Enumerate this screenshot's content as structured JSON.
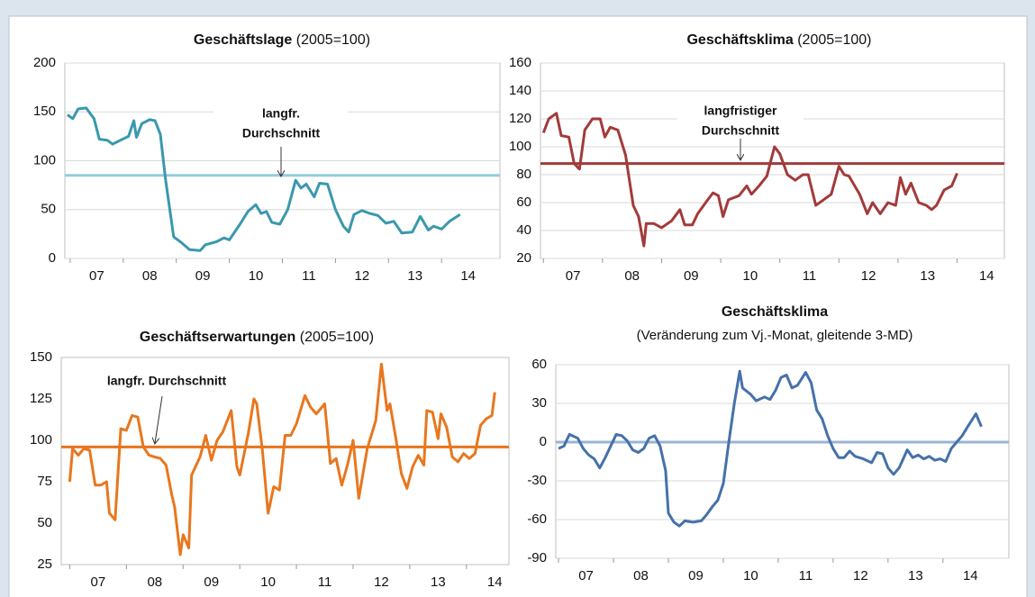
{
  "chart_data": [
    {
      "type": "line",
      "title": "Geschäftslage",
      "subtitle": "(2005=100)",
      "x": [
        2006.95,
        2007.05,
        2007.15,
        2007.3,
        2007.45,
        2007.55,
        2007.7,
        2007.8,
        2007.95,
        2008.1,
        2008.2,
        2008.25,
        2008.35,
        2008.5,
        2008.6,
        2008.7,
        2008.8,
        2008.95,
        2009.1,
        2009.25,
        2009.45,
        2009.55,
        2009.75,
        2009.9,
        2010.0,
        2010.2,
        2010.35,
        2010.5,
        2010.6,
        2010.7,
        2010.8,
        2010.95,
        2011.1,
        2011.25,
        2011.35,
        2011.45,
        2011.6,
        2011.7,
        2011.85,
        2012.0,
        2012.15,
        2012.25,
        2012.35,
        2012.5,
        2012.65,
        2012.8,
        2012.95,
        2013.1,
        2013.25,
        2013.45,
        2013.6,
        2013.75,
        2013.85,
        2014.0,
        2014.15,
        2014.35
      ],
      "series": [
        {
          "color": "#3a98ad",
          "values": [
            147,
            143,
            153,
            154,
            143,
            122,
            121,
            117,
            121,
            125,
            141,
            124,
            138,
            142,
            141,
            127,
            80,
            22,
            16,
            9,
            8,
            14,
            17,
            21,
            19,
            35,
            48,
            55,
            46,
            48,
            37,
            35,
            50,
            80,
            72,
            76,
            63,
            77,
            76,
            50,
            33,
            27,
            45,
            49,
            46,
            44,
            36,
            38,
            26,
            27,
            43,
            29,
            33,
            30,
            38,
            45
          ]
        }
      ],
      "reference_line": {
        "value": 85,
        "color": "#93cddd"
      },
      "annotation": {
        "lines": [
          "langfr.",
          "Durchschnitt"
        ],
        "color": "#3a98ad"
      },
      "xlim": [
        2006.9,
        2015.1
      ],
      "xticks": [
        {
          "value": 2007.5,
          "label": "07"
        },
        {
          "value": 2008.5,
          "label": "08"
        },
        {
          "value": 2009.5,
          "label": "09"
        },
        {
          "value": 2010.5,
          "label": "10"
        },
        {
          "value": 2011.5,
          "label": "11"
        },
        {
          "value": 2012.5,
          "label": "12"
        },
        {
          "value": 2013.5,
          "label": "13"
        },
        {
          "value": 2014.5,
          "label": "14"
        }
      ],
      "ylim": [
        0,
        200
      ],
      "yticks": [
        0,
        50,
        100,
        150,
        200
      ],
      "grid": true
    },
    {
      "type": "line",
      "title": "Geschäftsklima",
      "subtitle": "(2005=100)",
      "x": [
        2007.0,
        2007.09,
        2007.22,
        2007.3,
        2007.43,
        2007.52,
        2007.61,
        2007.7,
        2007.83,
        2007.96,
        2008.04,
        2008.13,
        2008.26,
        2008.39,
        2008.52,
        2008.61,
        2008.7,
        2008.74,
        2008.87,
        2009.0,
        2009.17,
        2009.31,
        2009.39,
        2009.52,
        2009.61,
        2009.78,
        2009.87,
        2009.96,
        2010.04,
        2010.13,
        2010.31,
        2010.44,
        2010.52,
        2010.65,
        2010.78,
        2010.91,
        2011.0,
        2011.13,
        2011.26,
        2011.39,
        2011.48,
        2011.61,
        2011.74,
        2011.87,
        2012.0,
        2012.09,
        2012.17,
        2012.35,
        2012.48,
        2012.57,
        2012.7,
        2012.83,
        2012.96,
        2013.04,
        2013.13,
        2013.22,
        2013.35,
        2013.48,
        2013.57,
        2013.65,
        2013.78,
        2013.91,
        2014.0
      ],
      "series": [
        {
          "color": "#a33a3a",
          "values": [
            110,
            120,
            124,
            108,
            107,
            88,
            84,
            112,
            120,
            120,
            107,
            114,
            112,
            94,
            58,
            50,
            29,
            45,
            45,
            42,
            47,
            55,
            44,
            44,
            52,
            62,
            67,
            65,
            50,
            62,
            65,
            72,
            66,
            72,
            79,
            100,
            95,
            80,
            76,
            80,
            80,
            58,
            62,
            66,
            86,
            80,
            79,
            66,
            52,
            60,
            52,
            60,
            58,
            78,
            66,
            74,
            60,
            58,
            55,
            58,
            69,
            72,
            81
          ]
        }
      ],
      "reference_line": {
        "value": 88,
        "color": "#a33a3a"
      },
      "annotation": {
        "lines": [
          "langfristiger",
          "Durchschnitt"
        ],
        "color": "#a33a3a"
      },
      "xlim": [
        2006.95,
        2014.8
      ],
      "xticks": [
        {
          "value": 2007.5,
          "label": "07"
        },
        {
          "value": 2008.5,
          "label": "08"
        },
        {
          "value": 2009.5,
          "label": "09"
        },
        {
          "value": 2010.5,
          "label": "10"
        },
        {
          "value": 2011.5,
          "label": "11"
        },
        {
          "value": 2012.5,
          "label": "12"
        },
        {
          "value": 2013.5,
          "label": "13"
        },
        {
          "value": 2014.5,
          "label": "14"
        }
      ],
      "ylim": [
        20,
        160
      ],
      "yticks": [
        20,
        40,
        60,
        80,
        100,
        120,
        140,
        160
      ],
      "grid": true
    },
    {
      "type": "line",
      "title": "Geschäftserwartungen",
      "subtitle": "(2005=100)",
      "x": [
        2007.0,
        2007.05,
        2007.15,
        2007.25,
        2007.35,
        2007.45,
        2007.55,
        2007.65,
        2007.7,
        2007.8,
        2007.9,
        2008.0,
        2008.1,
        2008.2,
        2008.3,
        2008.4,
        2008.5,
        2008.6,
        2008.7,
        2008.8,
        2008.85,
        2008.95,
        2009.0,
        2009.1,
        2009.15,
        2009.3,
        2009.4,
        2009.5,
        2009.6,
        2009.7,
        2009.85,
        2009.95,
        2010.0,
        2010.15,
        2010.25,
        2010.3,
        2010.4,
        2010.5,
        2010.6,
        2010.7,
        2010.8,
        2010.9,
        2011.0,
        2011.15,
        2011.25,
        2011.35,
        2011.5,
        2011.6,
        2011.7,
        2011.8,
        2011.9,
        2012.0,
        2012.1,
        2012.25,
        2012.4,
        2012.5,
        2012.6,
        2012.65,
        2012.75,
        2012.85,
        2012.95,
        2013.05,
        2013.15,
        2013.25,
        2013.3,
        2013.4,
        2013.5,
        2013.55,
        2013.65,
        2013.75,
        2013.85,
        2013.95,
        2014.05,
        2014.15,
        2014.25,
        2014.35,
        2014.45,
        2014.5
      ],
      "series": [
        {
          "color": "#e8771e",
          "values": [
            75,
            95,
            91,
            95,
            94,
            73,
            73,
            75,
            56,
            52,
            107,
            106,
            115,
            114,
            96,
            91,
            90,
            89,
            85,
            67,
            60,
            31,
            43,
            35,
            79,
            90,
            103,
            88,
            100,
            105,
            118,
            84,
            79,
            104,
            125,
            122,
            94,
            56,
            72,
            70,
            103,
            103,
            110,
            127,
            120,
            116,
            122,
            86,
            89,
            73,
            85,
            100,
            65,
            95,
            112,
            146,
            118,
            122,
            102,
            80,
            71,
            84,
            91,
            85,
            118,
            117,
            101,
            116,
            108,
            90,
            87,
            92,
            89,
            92,
            109,
            113,
            115,
            129
          ]
        }
      ],
      "reference_line": {
        "value": 96,
        "color": "#e8731c"
      },
      "annotation": {
        "lines": [
          "langfr. Durchschnitt"
        ],
        "color": "#e8731c"
      },
      "xlim": [
        2006.85,
        2014.75
      ],
      "xticks": [
        {
          "value": 2007.5,
          "label": "07"
        },
        {
          "value": 2008.5,
          "label": "08"
        },
        {
          "value": 2009.5,
          "label": "09"
        },
        {
          "value": 2010.5,
          "label": "10"
        },
        {
          "value": 2011.5,
          "label": "11"
        },
        {
          "value": 2012.5,
          "label": "12"
        },
        {
          "value": 2013.5,
          "label": "13"
        },
        {
          "value": 2014.5,
          "label": "14"
        }
      ],
      "ylim": [
        25,
        150
      ],
      "yticks": [
        25,
        50,
        75,
        100,
        125,
        150
      ],
      "grid": false
    },
    {
      "type": "line",
      "title": "Geschäftsklima",
      "subtitle": "(Veränderung zum Vj.-Monat, gleitende 3-MD)",
      "x": [
        2007.0,
        2007.1,
        2007.2,
        2007.35,
        2007.45,
        2007.55,
        2007.65,
        2007.75,
        2007.85,
        2007.95,
        2008.05,
        2008.15,
        2008.25,
        2008.35,
        2008.45,
        2008.55,
        2008.65,
        2008.75,
        2008.85,
        2008.95,
        2009.0,
        2009.1,
        2009.2,
        2009.3,
        2009.45,
        2009.6,
        2009.7,
        2009.8,
        2009.9,
        2010.0,
        2010.1,
        2010.2,
        2010.3,
        2010.35,
        2010.5,
        2010.6,
        2010.75,
        2010.85,
        2010.95,
        2011.05,
        2011.15,
        2011.25,
        2011.35,
        2011.5,
        2011.6,
        2011.7,
        2011.8,
        2011.9,
        2012.0,
        2012.1,
        2012.2,
        2012.3,
        2012.4,
        2012.55,
        2012.7,
        2012.8,
        2012.9,
        2013.0,
        2013.1,
        2013.2,
        2013.35,
        2013.45,
        2013.55,
        2013.65,
        2013.75,
        2013.85,
        2013.95,
        2014.05,
        2014.15,
        2014.25,
        2014.35,
        2014.45,
        2014.6,
        2014.7
      ],
      "series": [
        {
          "color": "#4571a9",
          "values": [
            -5,
            -3,
            6,
            3,
            -5,
            -10,
            -13,
            -20,
            -12,
            -3,
            6,
            5,
            1,
            -6,
            -8,
            -5,
            3,
            5,
            -3,
            -22,
            -55,
            -62,
            -65,
            -61,
            -62,
            -61,
            -56,
            -50,
            -45,
            -32,
            0,
            30,
            55,
            42,
            37,
            32,
            35,
            33,
            40,
            50,
            52,
            42,
            44,
            54,
            46,
            25,
            18,
            5,
            -5,
            -12,
            -12,
            -7,
            -11,
            -13,
            -16,
            -8,
            -9,
            -20,
            -25,
            -20,
            -6,
            -12,
            -10,
            -13,
            -11,
            -14,
            -13,
            -15,
            -5,
            0,
            5,
            12,
            22,
            12
          ]
        }
      ],
      "reference_line": {
        "value": 0,
        "color": "#9ab4d6"
      },
      "xlim": [
        2006.95,
        2015.2
      ],
      "xticks": [
        {
          "value": 2007.5,
          "label": "07"
        },
        {
          "value": 2008.5,
          "label": "08"
        },
        {
          "value": 2009.5,
          "label": "09"
        },
        {
          "value": 2010.5,
          "label": "10"
        },
        {
          "value": 2011.5,
          "label": "11"
        },
        {
          "value": 2012.5,
          "label": "12"
        },
        {
          "value": 2013.5,
          "label": "13"
        },
        {
          "value": 2014.5,
          "label": "14"
        }
      ],
      "ylim": [
        -90,
        60
      ],
      "yticks": [
        -90,
        -60,
        -30,
        0,
        30,
        60
      ],
      "grid": true
    }
  ]
}
